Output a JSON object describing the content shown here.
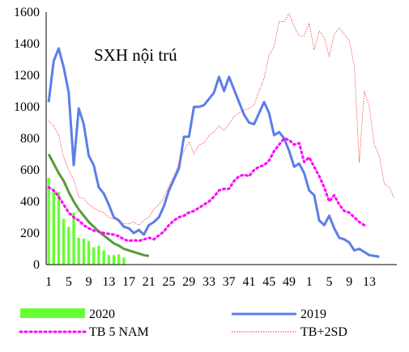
{
  "chart_data": {
    "type": "bar+line",
    "title": "SXH nội trú",
    "xlabel": "",
    "ylabel": "",
    "ylim": [
      0,
      1600
    ],
    "yticks": [
      0,
      200,
      400,
      600,
      800,
      1000,
      1200,
      1400,
      1600
    ],
    "x_tick_labels": [
      "1",
      "5",
      "9",
      "13",
      "17",
      "21",
      "25",
      "29",
      "33",
      "37",
      "41",
      "45",
      "49",
      "1",
      "5",
      "9",
      "13"
    ],
    "grid": false,
    "legend_position": "bottom",
    "series": [
      {
        "name": "2020",
        "type": "bar",
        "color": "#66FF33",
        "values": [
          550,
          480,
          460,
          290,
          240,
          330,
          170,
          165,
          150,
          110,
          120,
          90,
          60,
          60,
          65,
          45
        ]
      },
      {
        "name": "2019",
        "type": "line",
        "color": "#5B7FE8",
        "values": [
          1030,
          1290,
          1370,
          1250,
          1090,
          630,
          990,
          890,
          690,
          630,
          490,
          450,
          380,
          300,
          280,
          240,
          230,
          200,
          220,
          190,
          250,
          270,
          300,
          370,
          470,
          540,
          610,
          810,
          810,
          1000,
          1000,
          1010,
          1050,
          1090,
          1190,
          1100,
          1190,
          1110,
          1030,
          950,
          900,
          890,
          960,
          1030,
          960,
          820,
          840,
          800,
          720,
          620,
          640,
          580,
          470,
          440,
          280,
          250,
          310,
          230,
          170,
          160,
          140,
          90,
          100,
          80,
          60,
          55,
          50
        ]
      },
      {
        "name": "TB 5 NAM",
        "type": "line",
        "style": "dotted",
        "color": "#FF00FF",
        "values": [
          490,
          470,
          430,
          380,
          330,
          300,
          280,
          250,
          230,
          215,
          210,
          200,
          195,
          190,
          180,
          160,
          150,
          155,
          150,
          160,
          170,
          160,
          185,
          210,
          250,
          280,
          300,
          310,
          330,
          340,
          360,
          380,
          400,
          430,
          470,
          480,
          480,
          530,
          560,
          570,
          560,
          600,
          620,
          630,
          660,
          720,
          760,
          800,
          790,
          760,
          770,
          650,
          680,
          620,
          560,
          490,
          400,
          440,
          380,
          340,
          330,
          300,
          270,
          250
        ]
      },
      {
        "name": "TB+2SD",
        "type": "line",
        "style": "thin",
        "color": "#FF3333",
        "values": [
          910,
          880,
          820,
          680,
          600,
          540,
          430,
          420,
          380,
          360,
          340,
          330,
          300,
          290,
          280,
          260,
          260,
          270,
          250,
          280,
          300,
          350,
          380,
          420,
          500,
          560,
          640,
          720,
          780,
          700,
          760,
          770,
          820,
          840,
          880,
          850,
          890,
          940,
          960,
          980,
          990,
          1010,
          1100,
          1180,
          1330,
          1380,
          1540,
          1540,
          1590,
          1510,
          1450,
          1450,
          1530,
          1360,
          1480,
          1440,
          1320,
          1460,
          1500,
          1460,
          1420,
          1260,
          650,
          1100,
          1000,
          760,
          690,
          510,
          490,
          420
        ]
      }
    ]
  }
}
